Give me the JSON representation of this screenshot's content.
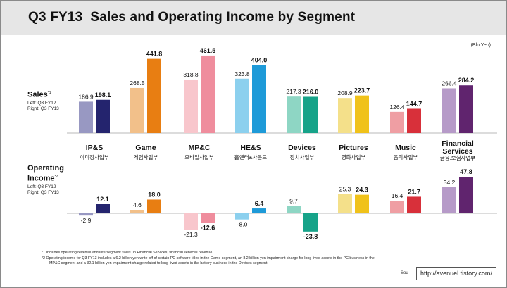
{
  "title": "Q3 FY13  Sales and Operating Income by Segment",
  "unit": "(Bln Yen)",
  "sales": {
    "label": "Sales",
    "note_mark": "*1",
    "left_legend": "Left:   Q3 FY12",
    "right_legend": "Right: Q3 FY13"
  },
  "operating_income": {
    "label_line1": "Operating",
    "label_line2": "Income",
    "note_mark": "*2",
    "left_legend": "Left:   Q3 FY12",
    "right_legend": "Right: Q3 FY13"
  },
  "colors": {
    "IP&S": [
      "#9898c2",
      "#24246e"
    ],
    "Game": [
      "#f2c08a",
      "#e87e12"
    ],
    "MP&C": [
      "#f8c6cc",
      "#ef8d9d"
    ],
    "HE&S": [
      "#8cd0ee",
      "#1e9ad8"
    ],
    "Devices": [
      "#8ed6c4",
      "#16a389"
    ],
    "Pictures": [
      "#f4e08a",
      "#f0c21a"
    ],
    "Music": [
      "#ef9ea3",
      "#d8303a"
    ],
    "Financial Services": [
      "#b69ac8",
      "#60246e"
    ]
  },
  "chart_data": [
    {
      "type": "bar",
      "title": "Sales",
      "categories": [
        "IP&S",
        "Game",
        "MP&C",
        "HE&S",
        "Devices",
        "Pictures",
        "Music",
        "Financial Services"
      ],
      "category_labels_kr": [
        "이미징사업부",
        "게임사업부",
        "모바일사업부",
        "홈엔터&사운드",
        "장치사업부",
        "영화사업부",
        "음악사업부",
        "금융.보험사업부"
      ],
      "series": [
        {
          "name": "Q3 FY12",
          "values": [
            186.9,
            268.5,
            318.8,
            323.8,
            217.3,
            208.9,
            126.4,
            266.4
          ]
        },
        {
          "name": "Q3 FY13",
          "values": [
            198.1,
            441.8,
            461.5,
            404.0,
            216.0,
            223.7,
            144.7,
            284.2
          ]
        }
      ],
      "value_labels": {
        "Q3 FY12": [
          "186.9",
          "268.5",
          "318.8",
          "323.8",
          "217.3",
          "208.9",
          "126.4",
          "266.4"
        ],
        "Q3 FY13": [
          "198.1",
          "441.8",
          "461.5",
          "404.0",
          "216.0",
          "223.7",
          "144.7",
          "284.2"
        ]
      }
    },
    {
      "type": "bar",
      "title": "Operating Income",
      "categories": [
        "IP&S",
        "Game",
        "MP&C",
        "HE&S",
        "Devices",
        "Pictures",
        "Music",
        "Financial Services"
      ],
      "series": [
        {
          "name": "Q3 FY12",
          "values": [
            -2.9,
            4.6,
            -21.3,
            -8.0,
            9.7,
            25.3,
            16.4,
            34.2
          ]
        },
        {
          "name": "Q3 FY13",
          "values": [
            12.1,
            18.0,
            -12.6,
            6.4,
            -23.8,
            24.3,
            21.7,
            47.8
          ]
        }
      ],
      "value_labels": {
        "Q3 FY12": [
          "-2.9",
          "4.6",
          "-21.3",
          "-8.0",
          "9.7",
          "25.3",
          "16.4",
          "34.2"
        ],
        "Q3 FY13": [
          "12.1",
          "18.0",
          "-12.6",
          "6.4",
          "-23.8",
          "24.3",
          "21.7",
          "47.8"
        ]
      }
    }
  ],
  "footnotes": [
    "*1  Includes operating revenue and intersegment sales. In Financial Services, financial services revenue",
    "*2  Operating income for Q3 FY13 includes a 6.2 billion yen write-off of certain PC software titles in the Game segment, an 8.2 billion yen impairment charge for long-lived assets in the PC business in the",
    "MP&C segment and a 32.1 billion yen impairment charge related to long-lived assets in the battery business in the Devices segment"
  ],
  "source": "Sou",
  "watermark": "http://avenuel.tistory.com/"
}
